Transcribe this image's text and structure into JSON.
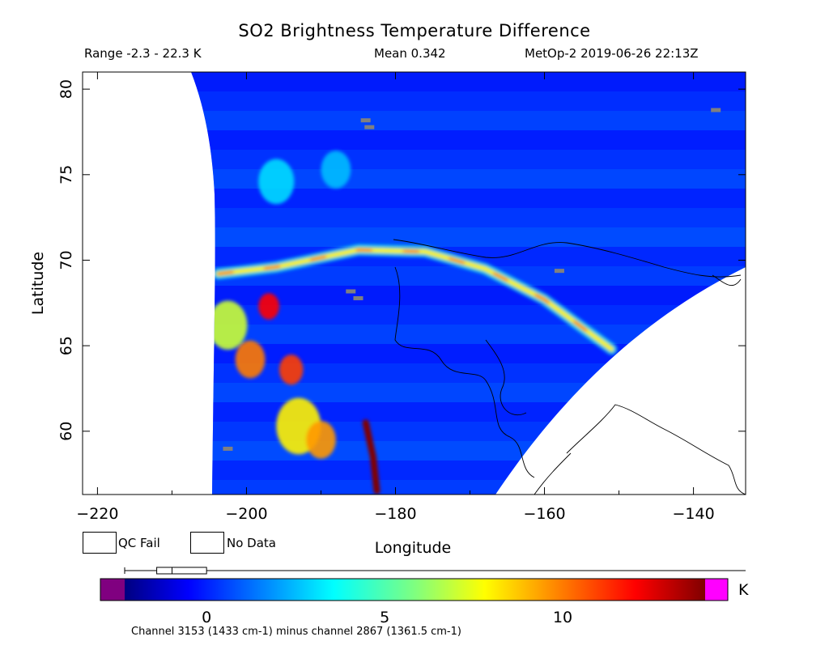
{
  "header": {
    "title": "SO2 Brightness Temperature Difference",
    "range": "Range -2.3 - 22.3 K",
    "mean": "Mean 0.342",
    "satellite": "MetOp-2 2019-06-26 22:13Z"
  },
  "legend": {
    "qc_fail": "QC Fail",
    "no_data": "No Data",
    "qc_color": "#808080",
    "no_data_color": "#ffffff"
  },
  "colorbar": {
    "unit": "K",
    "min": -2.3,
    "max": 22.3,
    "low_color": "#800080",
    "high_color": "#ff00ff",
    "ticks": [
      {
        "value": 0,
        "label": "0"
      },
      {
        "value": 5,
        "label": "5"
      },
      {
        "value": 10,
        "label": "10"
      }
    ]
  },
  "footnote": "Channel 3153 (1433 cm-1) minus channel 2867 (1361.5 cm-1)",
  "chart_data": {
    "type": "heatmap",
    "title": "SO2 Brightness Temperature Difference",
    "xlabel": "Longitude",
    "ylabel": "Latitude",
    "xlim": [
      -222,
      -133
    ],
    "ylim": [
      56.3,
      81
    ],
    "xticks": [
      {
        "value": -220,
        "label": "−220"
      },
      {
        "value": -200,
        "label": "−200"
      },
      {
        "value": -180,
        "label": "−180"
      },
      {
        "value": -160,
        "label": "−160"
      },
      {
        "value": -140,
        "label": "−140"
      }
    ],
    "yticks": [
      {
        "value": 60,
        "label": "60"
      },
      {
        "value": 65,
        "label": "65"
      },
      {
        "value": 70,
        "label": "70"
      },
      {
        "value": 75,
        "label": "75"
      },
      {
        "value": 80,
        "label": "80"
      }
    ],
    "background_value": 0.3,
    "features": [
      {
        "kind": "plume-arc",
        "points": [
          [
            -203.8,
            69.2
          ],
          [
            -196,
            69.6
          ],
          [
            -185,
            70.6
          ],
          [
            -176,
            70.5
          ],
          [
            -168,
            69.5
          ],
          [
            -160,
            67.7
          ],
          [
            -151,
            64.8
          ]
        ],
        "value": 8,
        "peak_value": 12
      },
      {
        "kind": "blob",
        "lon": -202.5,
        "lat": 66.2,
        "radius_deg": 2.6,
        "value": 7
      },
      {
        "kind": "blob",
        "lon": -199.5,
        "lat": 64.2,
        "radius_deg": 2.0,
        "value": 10
      },
      {
        "kind": "blob",
        "lon": -194,
        "lat": 63.6,
        "radius_deg": 1.6,
        "value": 11
      },
      {
        "kind": "blob",
        "lon": -193,
        "lat": 60.3,
        "radius_deg": 3.0,
        "value": 8
      },
      {
        "kind": "blob",
        "lon": -190,
        "lat": 59.5,
        "radius_deg": 2.0,
        "value": 9.5
      },
      {
        "kind": "blob",
        "lon": -197,
        "lat": 67.3,
        "radius_deg": 1.4,
        "value": 12
      },
      {
        "kind": "streak",
        "points": [
          [
            -184,
            60.5
          ],
          [
            -183,
            58.5
          ],
          [
            -182.5,
            56.5
          ]
        ],
        "value": 14
      },
      {
        "kind": "blob",
        "lon": -196,
        "lat": 74.6,
        "radius_deg": 2.4,
        "value": 3
      },
      {
        "kind": "blob",
        "lon": -188,
        "lat": 75.3,
        "radius_deg": 2.0,
        "value": 2.5
      }
    ],
    "qc_fail_points": [
      {
        "lon": -184,
        "lat": 78.2
      },
      {
        "lon": -183.5,
        "lat": 77.8
      },
      {
        "lon": -137,
        "lat": 78.8
      },
      {
        "lon": -158,
        "lat": 69.4
      },
      {
        "lon": -186,
        "lat": 68.2
      },
      {
        "lon": -185,
        "lat": 67.8
      },
      {
        "lon": -202.5,
        "lat": 59.0
      }
    ]
  }
}
